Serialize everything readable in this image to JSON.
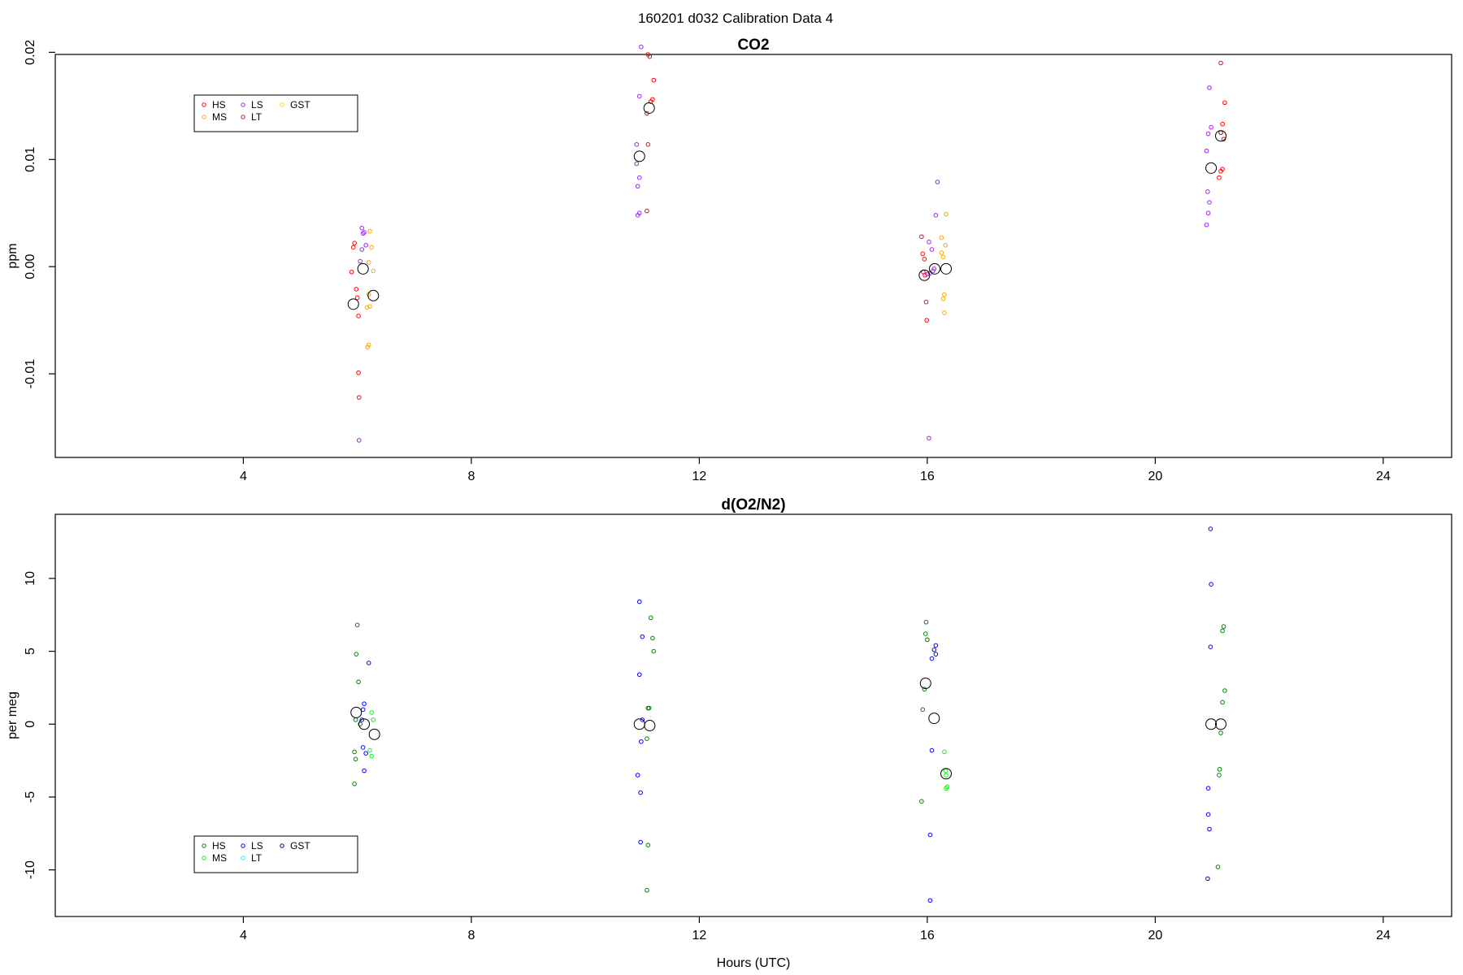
{
  "page_title": "160201   d032   Calibration Data 4",
  "chart_data": [
    {
      "type": "scatter",
      "title": "CO2",
      "xlabel": "",
      "ylabel": "ppm",
      "xlim": [
        0.7,
        25.2
      ],
      "ylim": [
        -0.0178,
        0.0198
      ],
      "x_ticks": [
        4,
        8,
        12,
        16,
        20,
        24
      ],
      "y_ticks": [
        -0.01,
        0.0,
        0.01,
        0.02
      ],
      "y_tick_labels": [
        "-0.01",
        "0.00",
        "0.01",
        "0.02"
      ],
      "grid": false,
      "legend_position": "top-left",
      "legend": [
        {
          "label": "HS",
          "color": "#ff0000"
        },
        {
          "label": "MS",
          "color": "#ffa500"
        },
        {
          "label": "LS",
          "color": "#a020f0"
        },
        {
          "label": "LT",
          "color": "#b22222"
        },
        {
          "label": "GST",
          "color": "#ffd700"
        }
      ],
      "series": [
        {
          "name": "HS",
          "color": "#ff0000",
          "points": [
            [
              5.95,
              0.0022
            ],
            [
              5.93,
              0.0018
            ],
            [
              5.9,
              -0.0005
            ],
            [
              5.98,
              -0.0021
            ],
            [
              6.0,
              -0.0029
            ],
            [
              6.02,
              -0.0046
            ],
            [
              6.02,
              -0.0099
            ],
            [
              6.03,
              -0.0122
            ],
            [
              11.1,
              0.0198
            ],
            [
              11.13,
              0.0196
            ],
            [
              11.2,
              0.0174
            ],
            [
              11.18,
              0.0156
            ],
            [
              11.15,
              0.0154
            ],
            [
              11.08,
              0.0143
            ],
            [
              11.1,
              0.0114
            ],
            [
              11.08,
              0.0052
            ],
            [
              15.9,
              0.0028
            ],
            [
              15.92,
              0.0012
            ],
            [
              15.95,
              0.0007
            ],
            [
              15.93,
              -0.0005
            ],
            [
              15.96,
              -0.0008
            ],
            [
              15.98,
              -0.0033
            ],
            [
              15.99,
              -0.005
            ],
            [
              21.15,
              0.019
            ],
            [
              21.22,
              0.0153
            ],
            [
              21.18,
              0.0133
            ],
            [
              21.15,
              0.0125
            ],
            [
              21.2,
              0.0119
            ],
            [
              21.18,
              0.0091
            ],
            [
              21.15,
              0.0089
            ],
            [
              21.12,
              0.0083
            ]
          ]
        },
        {
          "name": "MS",
          "color": "#ffa500",
          "points": [
            [
              6.22,
              0.0033
            ],
            [
              6.25,
              0.0018
            ],
            [
              6.2,
              0.0004
            ],
            [
              6.28,
              -0.0004
            ],
            [
              6.2,
              -0.0026
            ],
            [
              6.22,
              -0.0037
            ],
            [
              6.17,
              -0.0038
            ],
            [
              6.2,
              -0.0073
            ],
            [
              6.18,
              -0.0075
            ],
            [
              16.33,
              0.0049
            ],
            [
              16.25,
              0.0027
            ],
            [
              16.32,
              0.002
            ],
            [
              16.25,
              0.0013
            ],
            [
              16.28,
              0.0009
            ],
            [
              16.3,
              -0.0026
            ],
            [
              16.28,
              -0.003
            ],
            [
              16.3,
              -0.0043
            ]
          ]
        },
        {
          "name": "LS",
          "color": "#a020f0",
          "points": [
            [
              6.08,
              0.0036
            ],
            [
              6.12,
              0.0032
            ],
            [
              6.1,
              0.0031
            ],
            [
              6.15,
              0.002
            ],
            [
              6.08,
              0.0016
            ],
            [
              6.05,
              0.0005
            ],
            [
              6.03,
              -0.0162
            ],
            [
              10.98,
              0.0205
            ],
            [
              10.95,
              0.0159
            ],
            [
              10.9,
              0.0114
            ],
            [
              10.9,
              0.0096
            ],
            [
              10.95,
              0.0083
            ],
            [
              10.92,
              0.0075
            ],
            [
              10.92,
              0.0048
            ],
            [
              10.95,
              0.005
            ],
            [
              16.03,
              0.0023
            ],
            [
              16.08,
              0.0016
            ],
            [
              16.15,
              0.0048
            ],
            [
              16.18,
              0.0079
            ],
            [
              16.12,
              -0.0002
            ],
            [
              16.1,
              -0.0004
            ],
            [
              16.05,
              -0.0006
            ],
            [
              16.0,
              -0.0007
            ],
            [
              16.03,
              -0.016
            ],
            [
              20.95,
              0.0167
            ],
            [
              20.98,
              0.013
            ],
            [
              20.93,
              0.0124
            ],
            [
              20.9,
              0.0108
            ],
            [
              20.92,
              0.007
            ],
            [
              20.95,
              0.006
            ],
            [
              20.93,
              0.005
            ],
            [
              20.9,
              0.0039
            ]
          ]
        },
        {
          "name": "LT",
          "color": "#b22222",
          "points": [
            [
              21.15,
              0.0125
            ]
          ]
        },
        {
          "name": "GST",
          "color": "#ffd700",
          "points": []
        }
      ],
      "mean_markers": [
        [
          5.93,
          -0.0035
        ],
        [
          6.1,
          -0.0002
        ],
        [
          6.28,
          -0.0027
        ],
        [
          10.95,
          0.0103
        ],
        [
          11.12,
          0.0148
        ],
        [
          15.95,
          -0.0008
        ],
        [
          16.13,
          -0.0002
        ],
        [
          16.33,
          -0.0002
        ],
        [
          20.98,
          0.0092
        ],
        [
          21.15,
          0.0122
        ]
      ]
    },
    {
      "type": "scatter",
      "title": "d(O2/N2)",
      "xlabel": "Hours (UTC)",
      "ylabel": "per meg",
      "xlim": [
        0.7,
        25.2
      ],
      "ylim": [
        -13.2,
        14.4
      ],
      "x_ticks": [
        4,
        8,
        12,
        16,
        20,
        24
      ],
      "y_ticks": [
        -10,
        -5,
        0,
        5,
        10
      ],
      "y_tick_labels": [
        "-10",
        "-5",
        "0",
        "5",
        "10"
      ],
      "grid": false,
      "legend_position": "bottom-left",
      "legend": [
        {
          "label": "HS",
          "color": "#008000"
        },
        {
          "label": "MS",
          "color": "#00ff00"
        },
        {
          "label": "LS",
          "color": "#0000ff"
        },
        {
          "label": "LT",
          "color": "#00ffff"
        },
        {
          "label": "GST",
          "color": "#000080"
        }
      ],
      "series": [
        {
          "name": "HS",
          "color": "#008000",
          "points": [
            [
              6.0,
              6.8
            ],
            [
              5.98,
              4.8
            ],
            [
              6.02,
              2.9
            ],
            [
              5.97,
              0.3
            ],
            [
              6.05,
              0.0
            ],
            [
              5.95,
              -1.9
            ],
            [
              5.97,
              -2.4
            ],
            [
              5.95,
              -4.1
            ],
            [
              11.15,
              7.3
            ],
            [
              11.18,
              5.9
            ],
            [
              11.2,
              5.0
            ],
            [
              11.1,
              1.1
            ],
            [
              11.12,
              1.1
            ],
            [
              11.08,
              -1.0
            ],
            [
              11.1,
              -8.3
            ],
            [
              11.08,
              -11.4
            ],
            [
              15.98,
              7.0
            ],
            [
              15.97,
              6.2
            ],
            [
              16.0,
              5.8
            ],
            [
              15.95,
              2.4
            ],
            [
              15.92,
              1.0
            ],
            [
              15.9,
              -5.3
            ],
            [
              21.2,
              6.7
            ],
            [
              21.18,
              6.4
            ],
            [
              21.22,
              2.3
            ],
            [
              21.18,
              1.5
            ],
            [
              21.15,
              -0.6
            ],
            [
              21.13,
              -3.1
            ],
            [
              21.12,
              -3.5
            ],
            [
              21.1,
              -9.8
            ]
          ]
        },
        {
          "name": "MS",
          "color": "#00ff00",
          "points": [
            [
              6.25,
              0.8
            ],
            [
              6.28,
              0.3
            ],
            [
              6.22,
              -1.8
            ],
            [
              6.25,
              -2.2
            ],
            [
              16.3,
              -1.9
            ],
            [
              16.32,
              -3.2
            ],
            [
              16.33,
              -3.5
            ],
            [
              16.35,
              -4.3
            ],
            [
              16.33,
              -4.4
            ]
          ]
        },
        {
          "name": "LS",
          "color": "#0000ff",
          "points": [
            [
              6.2,
              4.2
            ],
            [
              6.12,
              1.4
            ],
            [
              6.1,
              1.0
            ],
            [
              6.08,
              0.3
            ],
            [
              6.1,
              -1.6
            ],
            [
              6.15,
              -2.0
            ],
            [
              6.12,
              -3.2
            ],
            [
              10.95,
              8.4
            ],
            [
              11.0,
              6.0
            ],
            [
              10.95,
              3.4
            ],
            [
              11.0,
              0.3
            ],
            [
              10.98,
              -1.2
            ],
            [
              10.92,
              -3.5
            ],
            [
              10.97,
              -4.7
            ],
            [
              10.97,
              -8.1
            ],
            [
              16.15,
              5.4
            ],
            [
              16.12,
              5.1
            ],
            [
              16.15,
              4.8
            ],
            [
              16.08,
              4.5
            ],
            [
              16.08,
              -1.8
            ],
            [
              16.05,
              -7.6
            ],
            [
              16.05,
              -12.1
            ],
            [
              20.97,
              13.4
            ],
            [
              20.98,
              9.6
            ],
            [
              20.97,
              5.3
            ],
            [
              20.93,
              -4.4
            ],
            [
              20.93,
              -6.2
            ],
            [
              20.95,
              -7.2
            ],
            [
              20.92,
              -10.6
            ]
          ]
        },
        {
          "name": "LT",
          "color": "#00ffff",
          "points": []
        },
        {
          "name": "GST",
          "color": "#000080",
          "points": []
        }
      ],
      "mean_markers": [
        [
          5.98,
          0.8
        ],
        [
          6.12,
          0.0
        ],
        [
          6.3,
          -0.7
        ],
        [
          10.95,
          0.0
        ],
        [
          11.13,
          -0.1
        ],
        [
          15.97,
          2.8
        ],
        [
          16.12,
          0.4
        ],
        [
          16.33,
          -3.4
        ],
        [
          20.98,
          0.0
        ],
        [
          21.15,
          0.0
        ]
      ]
    }
  ]
}
